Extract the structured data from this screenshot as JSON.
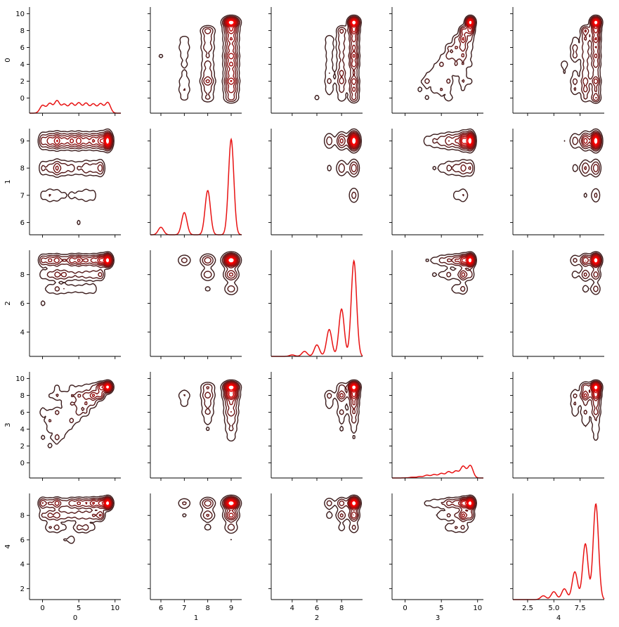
{
  "chart_data": {
    "type": "pairgrid",
    "variables": [
      "0",
      "1",
      "2",
      "3",
      "4"
    ],
    "diag_kind": "kde",
    "offdiag_kind": "kde-contour",
    "colors": {
      "kde_line": "#e81212",
      "contour_low": "#3b1c1c",
      "contour_high": "#ff0000"
    },
    "axes": {
      "0": {
        "label": "0",
        "lim": [
          -1.8,
          10.8
        ],
        "ticks": [
          0,
          5,
          10
        ],
        "tick_labels": [
          "0",
          "5",
          "10"
        ],
        "row_ticks": [
          0,
          2,
          4,
          6,
          8,
          10
        ],
        "row_tick_labels": [
          "0",
          "2",
          "4",
          "6",
          "8",
          "10"
        ]
      },
      "1": {
        "label": "1",
        "lim": [
          5.55,
          9.45
        ],
        "ticks": [
          6,
          7,
          8,
          9
        ],
        "tick_labels": [
          "6",
          "7",
          "8",
          "9"
        ],
        "row_ticks": [
          6,
          7,
          8,
          9
        ],
        "row_tick_labels": [
          "6",
          "7",
          "8",
          "9"
        ]
      },
      "2": {
        "label": "2",
        "lim": [
          2.3,
          9.7
        ],
        "ticks": [
          4,
          6,
          8
        ],
        "tick_labels": [
          "4",
          "6",
          "8"
        ],
        "row_ticks": [
          4,
          6,
          8
        ],
        "row_tick_labels": [
          "4",
          "6",
          "8"
        ]
      },
      "3": {
        "label": "3",
        "lim": [
          -1.8,
          10.8
        ],
        "ticks": [
          0,
          5,
          10
        ],
        "tick_labels": [
          "0",
          "5",
          "10"
        ],
        "row_ticks": [
          0,
          2,
          4,
          6,
          8,
          10
        ],
        "row_tick_labels": [
          "0",
          "2",
          "4",
          "6",
          "8",
          "10"
        ]
      },
      "4": {
        "label": "4",
        "lim": [
          1.1,
          9.8
        ],
        "ticks": [
          2.5,
          5.0,
          7.5
        ],
        "tick_labels": [
          "2.5",
          "5.0",
          "7.5"
        ],
        "row_ticks": [
          2,
          4,
          6,
          8
        ],
        "row_tick_labels": [
          "2",
          "4",
          "6",
          "8"
        ]
      }
    },
    "distributions": {
      "0": {
        "min": 0,
        "max": 9,
        "shape": "uniform",
        "modes": []
      },
      "1": {
        "min": 6,
        "max": 9,
        "shape": "discrete",
        "modes": [
          {
            "value": 6,
            "weight": 0.05
          },
          {
            "value": 7,
            "weight": 0.15
          },
          {
            "value": 8,
            "weight": 0.3
          },
          {
            "value": 9,
            "weight": 0.5
          }
        ]
      },
      "2": {
        "min": 4,
        "max": 9,
        "shape": "discrete",
        "modes": [
          {
            "value": 4,
            "weight": 0.02
          },
          {
            "value": 5,
            "weight": 0.05
          },
          {
            "value": 6,
            "weight": 0.09
          },
          {
            "value": 7,
            "weight": 0.16
          },
          {
            "value": 8,
            "weight": 0.27
          },
          {
            "value": 9,
            "weight": 0.41
          }
        ]
      },
      "3": {
        "min": 0,
        "max": 9,
        "shape": "uniform",
        "modes": []
      },
      "4": {
        "min": 3,
        "max": 9,
        "shape": "discrete",
        "modes": [
          {
            "value": 3,
            "weight": 0.02
          },
          {
            "value": 4,
            "weight": 0.04
          },
          {
            "value": 5,
            "weight": 0.07
          },
          {
            "value": 6,
            "weight": 0.1
          },
          {
            "value": 7,
            "weight": 0.15
          },
          {
            "value": 8,
            "weight": 0.25
          },
          {
            "value": 9,
            "weight": 0.37
          }
        ]
      }
    },
    "relationship": "variables 1-4 are always greater than or equal to variable 0 and 3 tracks 0 with noise",
    "contour_levels": 9,
    "bandwidth": 0.35
  }
}
